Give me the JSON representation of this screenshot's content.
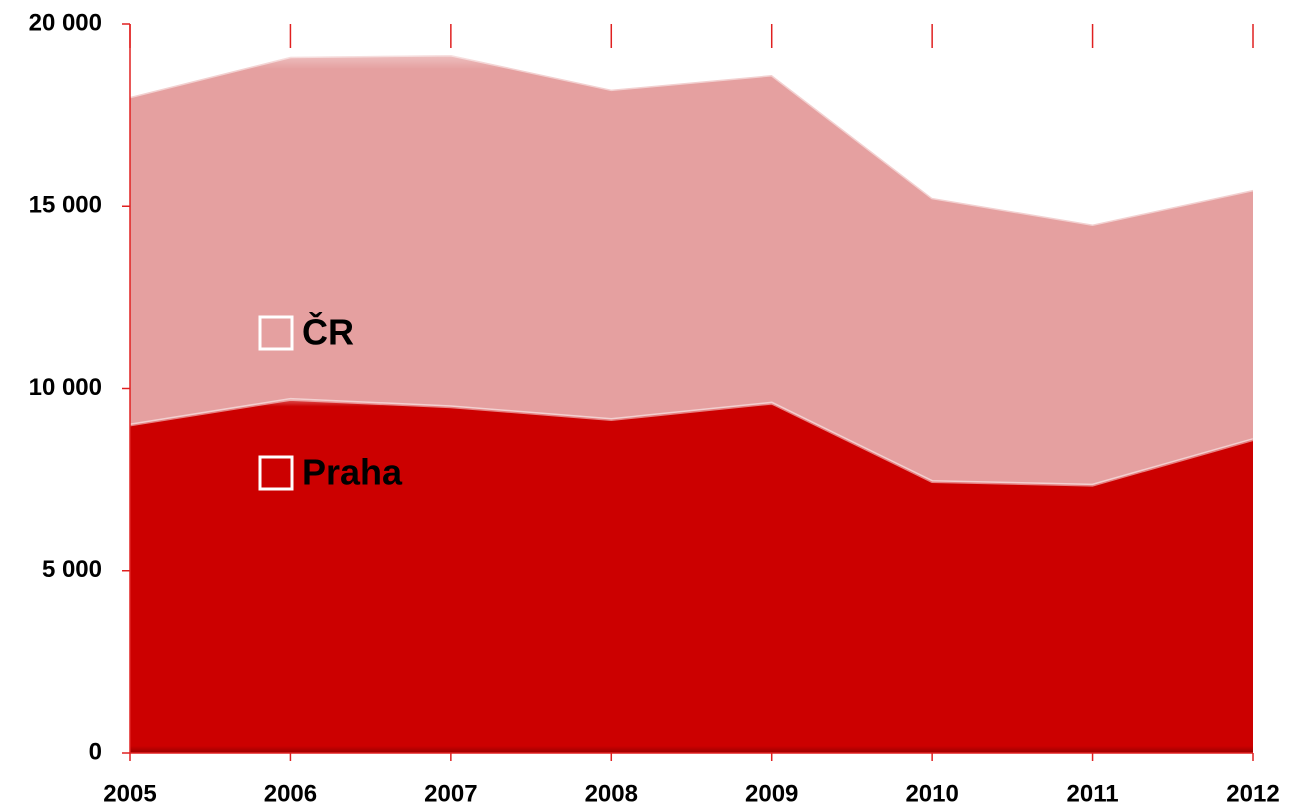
{
  "chart_data": {
    "type": "area",
    "categories": [
      "2005",
      "2006",
      "2007",
      "2008",
      "2009",
      "2010",
      "2011",
      "2012"
    ],
    "series": [
      {
        "name": "ČR",
        "color": "#e5a0a0",
        "values": [
          18000,
          19100,
          19150,
          18200,
          18600,
          15230,
          14500,
          15450
        ]
      },
      {
        "name": "Praha",
        "color": "#cc0000",
        "values": [
          9000,
          9700,
          9500,
          9150,
          9600,
          7450,
          7350,
          8600
        ]
      }
    ],
    "ylim": [
      0,
      20000
    ],
    "yticks": [
      {
        "value": 0,
        "label": "0"
      },
      {
        "value": 5000,
        "label": "5 000"
      },
      {
        "value": 10000,
        "label": "10 000"
      },
      {
        "value": 15000,
        "label": "15 000"
      },
      {
        "value": 20000,
        "label": "20 000"
      }
    ],
    "axis_color": "#e02020"
  }
}
